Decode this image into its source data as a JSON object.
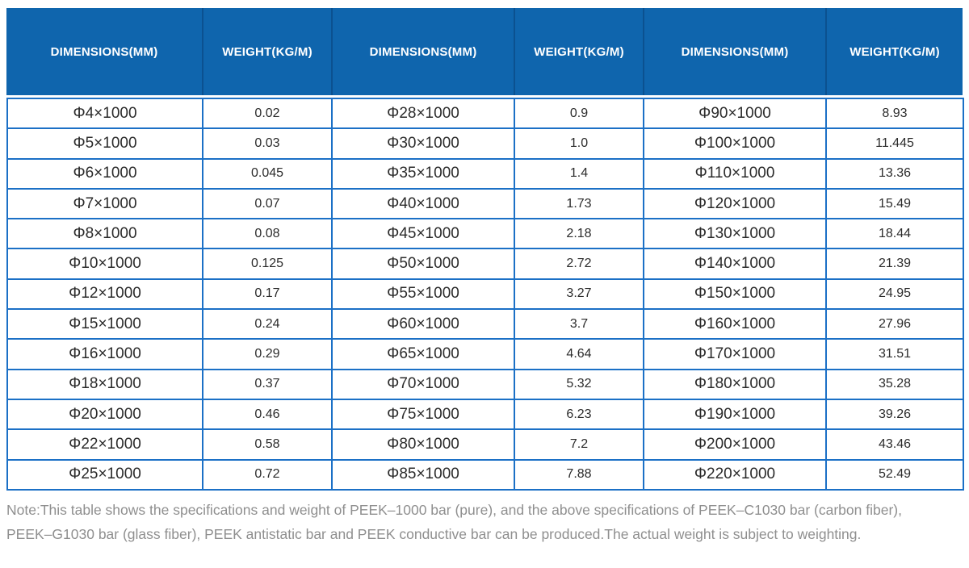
{
  "table": {
    "columns": [
      "DIMENSIONS(MM)",
      "WEIGHT(KG/M)",
      "DIMENSIONS(MM)",
      "WEIGHT(KG/M)",
      "DIMENSIONS(MM)",
      "WEIGHT(KG/M)"
    ],
    "rows": [
      [
        "Φ4×1000",
        "0.02",
        "Φ28×1000",
        "0.9",
        "Φ90×1000",
        "8.93"
      ],
      [
        "Φ5×1000",
        "0.03",
        "Φ30×1000",
        "1.0",
        "Φ100×1000",
        "11.445"
      ],
      [
        "Φ6×1000",
        "0.045",
        "Φ35×1000",
        "1.4",
        "Φ110×1000",
        "13.36"
      ],
      [
        "Φ7×1000",
        "0.07",
        "Φ40×1000",
        "1.73",
        "Φ120×1000",
        "15.49"
      ],
      [
        "Φ8×1000",
        "0.08",
        "Φ45×1000",
        "2.18",
        "Φ130×1000",
        "18.44"
      ],
      [
        "Φ10×1000",
        "0.125",
        "Φ50×1000",
        "2.72",
        "Φ140×1000",
        "21.39"
      ],
      [
        "Φ12×1000",
        "0.17",
        "Φ55×1000",
        "3.27",
        "Φ150×1000",
        "24.95"
      ],
      [
        "Φ15×1000",
        "0.24",
        "Φ60×1000",
        "3.7",
        "Φ160×1000",
        "27.96"
      ],
      [
        "Φ16×1000",
        "0.29",
        "Φ65×1000",
        "4.64",
        "Φ170×1000",
        "31.51"
      ],
      [
        "Φ18×1000",
        "0.37",
        "Φ70×1000",
        "5.32",
        "Φ180×1000",
        "35.28"
      ],
      [
        "Φ20×1000",
        "0.46",
        "Φ75×1000",
        "6.23",
        "Φ190×1000",
        "39.26"
      ],
      [
        "Φ22×1000",
        "0.58",
        "Φ80×1000",
        "7.2",
        "Φ200×1000",
        "43.46"
      ],
      [
        "Φ25×1000",
        "0.72",
        "Φ85×1000",
        "7.88",
        "Φ220×1000",
        "52.49"
      ]
    ]
  },
  "note": {
    "lines": [
      "Note:This table shows the specifications and weight of PEEK–1000 bar (pure), and the above specifications of PEEK–C1030 bar (carbon fiber),",
      "PEEK–G1030 bar (glass fiber), PEEK antistatic bar and PEEK conductive bar can be produced.The actual weight is subject to weighting."
    ]
  },
  "colors": {
    "header_bg": "#0f65ad",
    "header_divider": "#0b5190",
    "grid_border": "#1b70c6",
    "body_text": "#2b2b2b",
    "note_text": "#8f8f8f"
  }
}
